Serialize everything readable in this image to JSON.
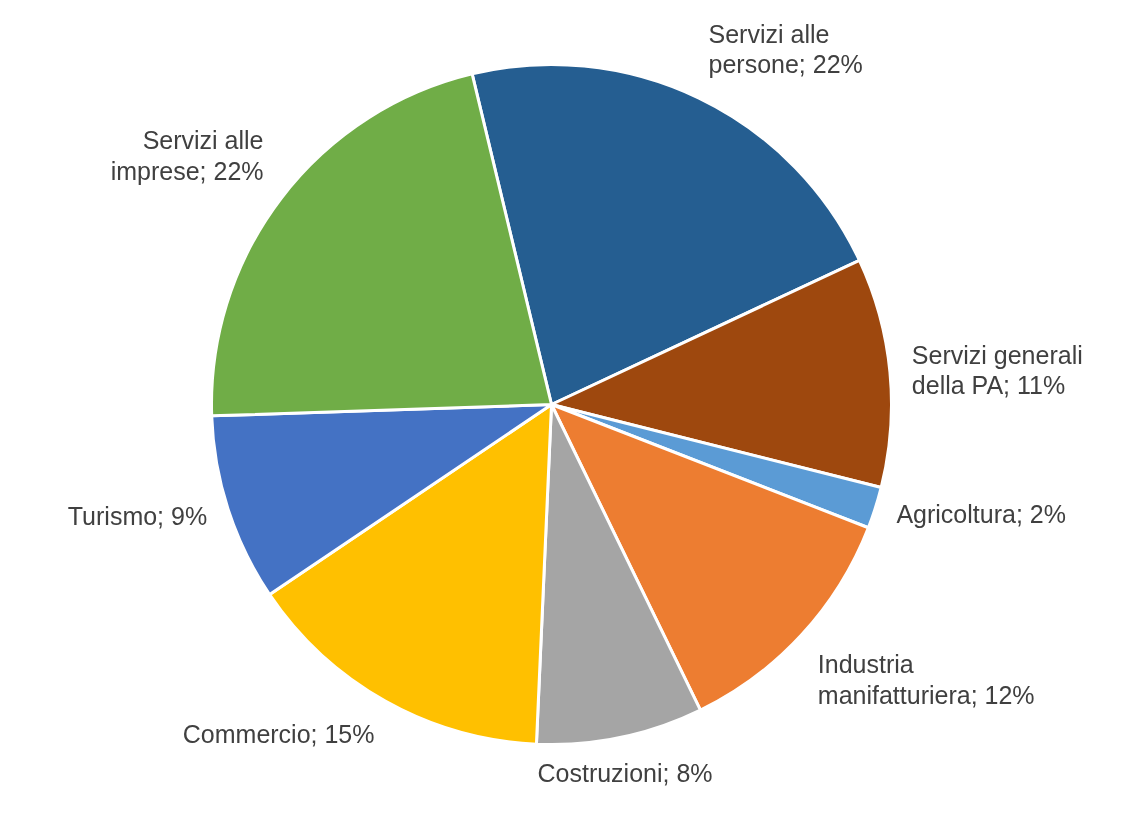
{
  "chart_data": {
    "type": "pie",
    "categories": [
      "Servizi alle persone",
      "Servizi generali della PA",
      "Agricoltura",
      "Industria manifatturiera",
      "Costruzioni",
      "Commercio",
      "Turismo",
      "Servizi alle imprese"
    ],
    "values": [
      22,
      11,
      2,
      12,
      8,
      15,
      9,
      22
    ],
    "colors": [
      "#255e91",
      "#9e480e",
      "#5b9bd5",
      "#ed7d31",
      "#a5a5a5",
      "#ffc000",
      "#4472c4",
      "#70ad47"
    ],
    "value_labels": [
      "22%",
      "11%",
      "2%",
      "12%",
      "8%",
      "15%",
      "9%",
      "22%"
    ],
    "legend": false
  }
}
